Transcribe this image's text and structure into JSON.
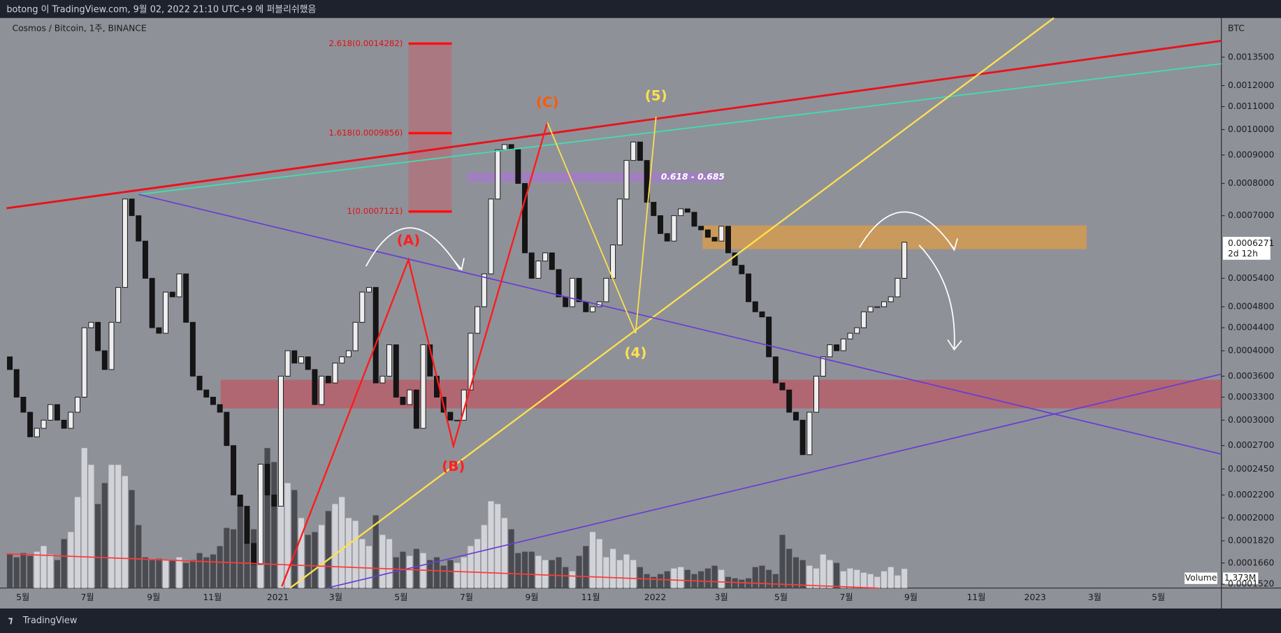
{
  "header": {
    "title": "botong 이 TradingView.com, 9월 02, 2022 21:10 UTC+9 에 퍼블리쉬했음"
  },
  "footer": {
    "brand": "TradingView"
  },
  "chart_data": {
    "type": "candlestick",
    "title": "Cosmos / Bitcoin, 1주, BINANCE",
    "unit_label": "BTC",
    "log_scale": true,
    "x_labels": [
      "5월",
      "7월",
      "9월",
      "11월",
      "2021",
      "3월",
      "5월",
      "7월",
      "9월",
      "11월",
      "2022",
      "3월",
      "5월",
      "7월",
      "9월",
      "11월",
      "2023",
      "3월",
      "5월"
    ],
    "ylim": [
      0.0001496,
      0.001588
    ],
    "yticks": [
      {
        "value": 0.00135,
        "label": "0.0013500"
      },
      {
        "value": 0.0012,
        "label": "0.0012000"
      },
      {
        "value": 0.0011,
        "label": "0.0011000"
      },
      {
        "value": 0.001,
        "label": "0.0010000"
      },
      {
        "value": 0.0009,
        "label": "0.0009000"
      },
      {
        "value": 0.0008,
        "label": "0.0008000"
      },
      {
        "value": 0.0007,
        "label": "0.0007000"
      },
      {
        "value": 0.00054,
        "label": "0.0005400"
      },
      {
        "value": 0.00048,
        "label": "0.0004800"
      },
      {
        "value": 0.00044,
        "label": "0.0004400"
      },
      {
        "value": 0.0004,
        "label": "0.0004000"
      },
      {
        "value": 0.00036,
        "label": "0.0003600"
      },
      {
        "value": 0.00033,
        "label": "0.0003300"
      },
      {
        "value": 0.0003,
        "label": "0.0003000"
      },
      {
        "value": 0.00027,
        "label": "0.0002700"
      },
      {
        "value": 0.000245,
        "label": "0.0002450"
      },
      {
        "value": 0.00022,
        "label": "0.0002200"
      },
      {
        "value": 0.0002,
        "label": "0.0002000"
      },
      {
        "value": 0.000182,
        "label": "0.0001820"
      },
      {
        "value": 0.000166,
        "label": "0.0001660"
      },
      {
        "value": 0.000152,
        "label": "0.0001520"
      }
    ],
    "series": [
      {
        "up_color": "#eeeeee",
        "down_color": "#151515",
        "open": [
          0.00039,
          0.00037,
          0.00033,
          0.00031,
          0.00028,
          0.00029,
          0.0003,
          0.00032,
          0.0003,
          0.00029,
          0.00031,
          0.00033,
          0.00044,
          0.00045,
          0.0004,
          0.00037,
          0.00045,
          0.00052,
          0.00075,
          0.0007,
          0.00063,
          0.00054,
          0.00044,
          0.00043,
          0.00051,
          0.0005,
          0.00055,
          0.00045,
          0.00036,
          0.00034,
          0.00033,
          0.00032,
          0.00031,
          0.00027,
          0.00022,
          0.00021,
          0.00018,
          0.000165,
          0.00025,
          0.00022,
          0.00021,
          0.00036,
          0.0004,
          0.00038,
          0.00039,
          0.00037,
          0.00032,
          0.00036,
          0.00035,
          0.00038,
          0.00039,
          0.0004,
          0.00045,
          0.00051,
          0.00052,
          0.00035,
          0.00036,
          0.00041,
          0.00033,
          0.00032,
          0.00034,
          0.00029,
          0.00041,
          0.00036,
          0.00033,
          0.00031,
          0.0003,
          0.0003,
          0.00034,
          0.00043,
          0.00048,
          0.00055,
          0.00075,
          0.00092,
          0.00094,
          0.00092,
          0.0008,
          0.0006,
          0.00054,
          0.00058,
          0.0006,
          0.00056,
          0.0005,
          0.00048,
          0.00054,
          0.00049,
          0.00047,
          0.00048,
          0.00049,
          0.00054,
          0.00062,
          0.00075,
          0.00088,
          0.00095,
          0.00088,
          0.00074,
          0.0007,
          0.00065,
          0.00063,
          0.0007,
          0.00072,
          0.00071,
          0.00067,
          0.00066,
          0.00064,
          0.00063,
          0.00067,
          0.0006,
          0.00057,
          0.00055,
          0.00049,
          0.00047,
          0.00046,
          0.00039,
          0.00035,
          0.00034,
          0.00031,
          0.0003,
          0.00026,
          0.00031,
          0.00036,
          0.00039,
          0.00041,
          0.0004,
          0.00042,
          0.00043,
          0.00044,
          0.00047,
          0.00048,
          0.00048,
          0.00049,
          0.0005,
          0.00054
        ],
        "close": [
          0.00037,
          0.00033,
          0.00031,
          0.00028,
          0.00029,
          0.0003,
          0.00032,
          0.0003,
          0.00029,
          0.00031,
          0.00033,
          0.00044,
          0.00045,
          0.0004,
          0.00037,
          0.00045,
          0.00052,
          0.00075,
          0.0007,
          0.00063,
          0.00054,
          0.00044,
          0.00043,
          0.00051,
          0.0005,
          0.00055,
          0.00045,
          0.00036,
          0.00034,
          0.00033,
          0.00032,
          0.00031,
          0.00027,
          0.00022,
          0.00021,
          0.00018,
          0.000165,
          0.00025,
          0.00022,
          0.00021,
          0.00036,
          0.0004,
          0.00038,
          0.00039,
          0.00037,
          0.00032,
          0.00036,
          0.00035,
          0.00038,
          0.00039,
          0.0004,
          0.00045,
          0.00051,
          0.00052,
          0.00035,
          0.00036,
          0.00041,
          0.00033,
          0.00032,
          0.00034,
          0.00029,
          0.00041,
          0.00036,
          0.00033,
          0.00031,
          0.0003,
          0.0003,
          0.00034,
          0.00043,
          0.00048,
          0.00055,
          0.00075,
          0.00092,
          0.00094,
          0.00092,
          0.0008,
          0.0006,
          0.00054,
          0.00058,
          0.0006,
          0.00056,
          0.0005,
          0.00048,
          0.00054,
          0.00049,
          0.00047,
          0.00048,
          0.00049,
          0.00054,
          0.00062,
          0.00075,
          0.00088,
          0.00095,
          0.00088,
          0.00074,
          0.0007,
          0.00065,
          0.00063,
          0.0007,
          0.00072,
          0.00071,
          0.00067,
          0.00066,
          0.00064,
          0.00063,
          0.00067,
          0.0006,
          0.00057,
          0.00055,
          0.00049,
          0.00047,
          0.00046,
          0.00039,
          0.00035,
          0.00034,
          0.00031,
          0.0003,
          0.00026,
          0.00031,
          0.00036,
          0.00039,
          0.00041,
          0.0004,
          0.00042,
          0.00043,
          0.00044,
          0.00047,
          0.00048,
          0.00048,
          0.00049,
          0.0005,
          0.00054,
          0.0006271
        ]
      }
    ],
    "volume": {
      "name": "Volume",
      "ylim": [
        0,
        10.5
      ],
      "last_label": "1.373M",
      "up_color": "#d2d3d8",
      "down_color": "#4a4b50",
      "values": [
        2.4,
        2.2,
        2.5,
        2.3,
        2.6,
        3.0,
        2.4,
        2.0,
        3.5,
        4.0,
        6.5,
        10.0,
        8.8,
        6.0,
        7.5,
        8.8,
        8.8,
        8.0,
        7.0,
        4.5,
        2.2,
        2.0,
        2.1,
        2.0,
        2.0,
        2.2,
        1.8,
        2.0,
        2.5,
        2.2,
        2.4,
        3.0,
        4.3,
        4.2,
        6.0,
        5.0,
        4.2,
        7.0,
        10.0,
        9.0,
        6.2,
        7.5,
        7.0,
        5.0,
        3.8,
        4.0,
        4.5,
        5.5,
        6.0,
        6.5,
        5.0,
        4.8,
        3.5,
        3.0,
        5.2,
        3.8,
        3.5,
        2.2,
        2.6,
        2.3,
        2.8,
        2.5,
        2.0,
        2.2,
        1.6,
        2.0,
        1.8,
        2.2,
        3.0,
        3.5,
        4.5,
        6.2,
        6.0,
        5.0,
        4.2,
        2.5,
        2.6,
        2.6,
        2.3,
        2.0,
        2.0,
        2.2,
        1.5,
        1.2,
        2.3,
        3.0,
        4.0,
        3.5,
        2.2,
        2.8,
        2.0,
        2.4,
        2.0,
        1.5,
        1.0,
        0.8,
        1.0,
        1.2,
        1.4,
        1.5,
        1.3,
        1.0,
        1.2,
        1.4,
        1.6,
        1.3,
        0.8,
        0.7,
        0.6,
        0.7,
        1.5,
        1.6,
        1.3,
        1.0,
        3.8,
        2.8,
        2.2,
        2.0,
        1.6,
        1.4,
        2.4,
        2.0,
        1.8,
        1.2,
        1.4,
        1.3,
        1.1,
        1.0,
        0.8,
        1.2,
        1.5,
        0.9,
        1.373
      ]
    },
    "countdown": "2d 12h",
    "fib_levels": [
      {
        "label": "2.618(0.0014282)",
        "price": 0.0014282
      },
      {
        "label": "1.618(0.0009856)",
        "price": 0.0009856
      },
      {
        "label": "1(0.0007121)",
        "price": 0.0007121
      }
    ],
    "zone_label": "0.618 - 0.685",
    "waves": [
      {
        "label": "(A)",
        "color": "#ff2020"
      },
      {
        "label": "(B)",
        "color": "#ff2020"
      },
      {
        "label": "(C)",
        "color": "#ff5a00"
      },
      {
        "label": "(4)",
        "color": "#ffe14d"
      },
      {
        "label": "(5)",
        "color": "#ffe14d"
      }
    ]
  }
}
